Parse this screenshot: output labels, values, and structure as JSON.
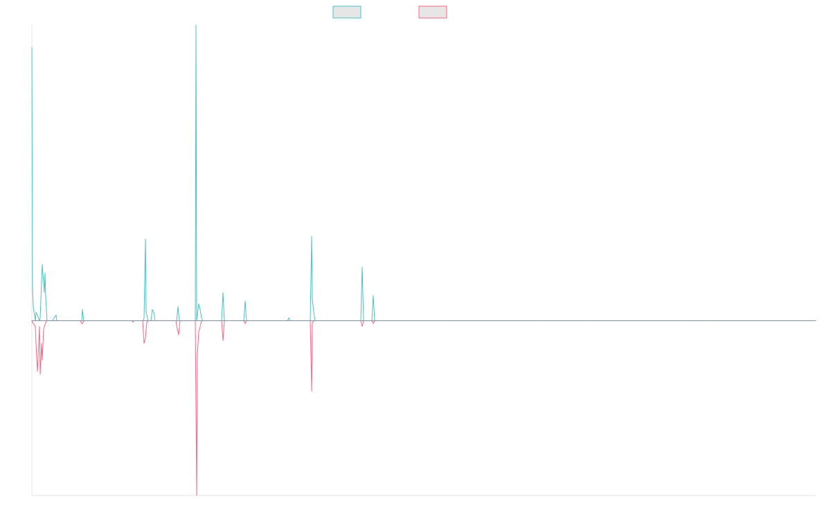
{
  "chart_data": {
    "type": "line",
    "legend": {
      "placement": "top-center",
      "entries": [
        {
          "series_index": 0,
          "label": ""
        },
        {
          "series_index": 1,
          "label": ""
        }
      ]
    },
    "x": [
      0,
      1,
      2,
      3,
      4,
      5,
      6,
      7,
      8,
      9,
      10,
      11,
      12,
      13,
      14,
      15,
      16,
      17,
      18,
      19,
      20,
      21,
      22,
      23,
      24,
      25,
      26,
      27,
      28,
      29,
      30,
      31,
      32,
      33,
      34,
      35,
      36,
      37,
      38,
      39,
      40,
      41,
      42,
      43,
      44,
      45,
      46,
      47,
      48,
      49,
      50,
      51,
      52,
      53,
      54,
      55,
      56,
      57,
      58,
      59,
      60,
      61,
      62,
      63,
      64,
      65,
      66,
      67,
      68,
      69,
      70,
      71,
      72,
      73,
      74,
      75,
      76,
      77,
      78,
      79,
      80,
      81,
      82,
      83,
      84,
      85,
      86,
      87,
      88,
      89,
      90,
      91,
      92,
      93,
      94,
      95,
      96,
      97,
      98,
      99,
      100,
      101,
      102,
      103,
      104,
      105,
      106,
      107,
      108,
      109,
      110,
      111,
      112,
      113,
      114,
      115,
      116,
      117,
      118,
      119,
      120,
      121,
      122,
      123,
      124,
      125,
      126,
      127,
      128,
      129,
      130,
      131,
      132,
      133,
      134,
      135,
      136,
      137,
      138,
      139,
      140,
      141,
      142,
      143,
      144,
      145,
      146,
      147,
      148,
      149,
      150,
      151,
      152,
      153,
      154,
      155,
      156,
      157,
      158,
      159,
      160,
      161,
      162,
      163,
      164,
      165,
      166,
      167,
      168,
      169,
      170,
      171,
      172,
      173,
      174,
      175,
      176,
      177,
      178,
      179,
      180,
      181,
      182,
      183,
      184,
      185,
      186,
      187,
      188,
      189,
      190,
      191,
      192,
      193,
      194,
      195,
      196,
      197,
      198,
      199,
      200,
      201,
      202,
      203,
      204,
      205,
      206,
      207,
      208,
      209,
      210,
      211,
      212,
      213,
      214,
      215,
      216,
      217,
      218,
      219,
      220,
      221,
      222,
      223,
      224,
      225,
      226,
      227,
      228,
      229,
      230,
      231,
      232,
      233,
      234,
      235,
      236,
      237,
      238,
      239,
      240,
      241,
      242,
      243,
      244,
      245,
      246,
      247,
      248,
      249,
      250,
      251,
      252,
      253,
      254,
      255,
      256,
      257,
      258,
      259,
      260,
      261,
      262,
      263,
      264,
      265,
      266,
      267,
      268,
      269,
      270,
      271,
      272,
      273,
      274,
      275,
      276,
      277,
      278,
      279,
      280,
      281,
      282,
      283,
      284,
      285,
      286,
      287,
      288,
      289,
      290,
      291,
      292,
      293,
      294,
      295,
      296,
      297,
      298,
      299,
      300,
      301,
      302,
      303,
      304,
      305,
      306,
      307,
      308,
      309,
      310,
      311,
      312,
      313,
      314,
      315,
      316,
      317,
      318,
      319,
      320,
      321,
      322,
      323,
      324,
      325,
      326,
      327,
      328,
      329,
      330,
      331,
      332,
      333,
      334,
      335,
      336,
      337,
      338,
      339,
      340,
      341,
      342,
      343,
      344,
      345,
      346,
      347,
      348,
      349,
      350,
      351,
      352,
      353,
      354,
      355,
      356,
      357,
      358,
      359,
      360,
      361,
      362,
      363,
      364,
      365,
      366,
      367,
      368,
      369,
      370,
      371,
      372,
      373,
      374,
      375,
      376,
      377,
      378,
      379,
      380,
      381,
      382,
      383,
      384,
      385,
      386,
      387,
      388,
      389,
      390,
      391,
      392,
      393,
      394,
      395,
      396,
      397,
      398,
      399,
      400,
      401,
      402,
      403,
      404,
      405,
      406,
      407,
      408,
      409,
      410,
      411,
      412,
      413,
      414,
      415,
      416,
      417,
      418,
      419,
      420,
      421,
      422,
      423,
      424,
      425,
      426,
      427,
      428,
      429,
      430,
      431,
      432,
      433,
      434,
      435,
      436,
      437,
      438,
      439,
      440,
      441,
      442,
      443,
      444,
      445,
      446,
      447,
      448,
      449,
      450,
      451,
      452,
      453,
      454,
      455,
      456,
      457,
      458,
      459,
      460,
      461,
      462,
      463,
      464,
      465,
      466,
      467,
      468,
      469,
      470,
      471,
      472,
      473,
      474,
      475,
      476,
      477,
      478,
      479,
      480,
      481,
      482,
      483,
      484,
      485,
      486,
      487,
      488,
      489,
      490,
      491,
      492,
      493,
      494,
      495,
      496,
      497,
      498,
      499,
      500,
      501,
      502,
      503,
      504,
      505,
      506,
      507,
      508,
      509,
      510,
      511,
      512,
      513,
      514,
      515,
      516,
      517,
      518,
      519,
      520,
      521,
      522,
      523,
      524,
      525,
      526,
      527,
      528,
      529,
      530,
      531,
      532,
      533,
      534,
      535,
      536,
      537,
      538,
      539,
      540,
      541,
      542,
      543,
      544,
      545,
      546,
      547,
      548,
      549,
      550,
      551,
      552,
      553,
      554,
      555,
      556,
      557,
      558,
      559,
      560,
      561,
      562,
      563,
      564,
      565,
      566,
      567,
      568,
      569,
      570,
      571,
      572,
      573,
      574,
      575,
      576,
      577,
      578,
      579,
      580,
      581,
      582,
      583,
      584,
      585,
      586,
      587,
      588,
      589,
      590,
      591,
      592,
      593,
      594,
      595,
      596,
      597,
      598,
      599,
      600,
      601,
      602,
      603,
      604,
      605,
      606,
      607,
      608,
      609,
      610,
      611,
      612,
      613,
      614,
      615,
      616,
      617,
      618,
      619,
      620,
      621,
      622,
      623,
      624,
      625,
      626,
      627,
      628,
      629,
      630,
      631,
      632,
      633,
      634,
      635,
      636,
      637,
      638,
      639,
      640,
      641,
      642,
      643,
      644,
      645,
      646,
      647,
      648,
      649,
      650,
      651,
      652,
      653,
      654,
      655,
      656,
      657,
      658,
      659,
      660,
      661,
      662,
      663,
      664,
      665,
      666,
      667,
      668,
      669,
      670,
      671,
      672,
      673,
      674,
      675,
      676,
      677,
      678,
      679,
      680,
      681,
      682,
      683,
      684,
      685,
      686,
      687,
      688,
      689,
      690,
      691,
      692,
      693,
      694,
      695,
      696,
      697,
      698,
      699,
      700,
      701,
      702,
      703,
      704,
      705,
      706,
      707,
      708,
      709,
      710,
      711,
      712,
      713,
      714,
      715,
      716,
      717,
      718,
      719,
      720,
      721,
      722,
      723,
      724,
      725,
      726,
      727,
      728,
      729,
      730,
      731,
      732,
      733,
      734,
      735,
      736,
      737,
      738,
      739,
      740,
      741,
      742,
      743,
      744,
      745,
      746,
      747,
      748,
      749,
      750,
      751,
      752,
      753,
      754,
      755,
      756,
      757,
      758,
      759,
      760,
      761,
      762,
      763,
      764,
      765,
      766,
      767,
      768,
      769,
      770,
      771,
      772,
      773,
      774,
      775,
      776,
      777,
      778,
      779,
      780,
      781,
      782,
      783,
      784,
      785,
      786,
      787,
      788,
      789,
      790,
      791,
      792,
      793,
      794,
      795,
      796,
      797,
      798,
      799,
      800,
      801,
      802,
      803,
      804,
      805,
      806,
      807,
      808,
      809,
      810,
      811,
      812,
      813,
      814,
      815,
      816,
      817,
      818,
      819,
      820,
      821,
      822,
      823,
      824,
      825,
      826,
      827,
      828,
      829,
      830,
      831,
      832,
      833,
      834,
      835,
      836,
      837,
      838,
      839,
      840,
      841,
      842,
      843,
      844,
      845,
      846,
      847,
      848,
      849,
      850,
      851,
      852,
      853,
      854,
      855,
      856,
      857,
      858,
      859,
      860,
      861,
      862,
      863,
      864,
      865,
      866,
      867,
      868,
      869,
      870,
      871,
      872,
      873,
      874,
      875,
      876,
      877,
      878,
      879,
      880,
      881,
      882,
      883,
      884,
      885,
      886,
      887,
      888,
      889,
      890,
      891,
      892,
      893,
      894,
      895,
      896,
      897,
      898,
      899,
      900,
      901,
      902,
      903,
      904,
      905,
      906,
      907,
      908,
      909,
      910,
      911,
      912,
      913,
      914,
      915,
      916,
      917,
      918,
      919,
      920,
      921,
      922,
      923,
      924,
      925,
      926,
      927,
      928,
      929,
      930,
      931,
      932,
      933,
      934,
      935,
      936,
      937,
      938,
      939,
      940,
      941,
      942,
      943,
      944,
      945,
      946,
      947,
      948,
      949,
      950,
      951,
      952,
      953,
      954,
      955,
      956,
      957,
      958,
      959,
      960,
      961,
      962,
      963,
      964,
      965,
      966,
      967,
      968,
      969,
      970,
      971,
      972,
      973,
      974,
      975,
      976,
      977,
      978,
      979,
      980,
      981,
      982,
      983,
      984,
      985,
      986,
      987,
      988,
      989,
      990,
      991,
      992,
      993,
      994,
      995,
      996,
      997,
      998,
      999,
      1000,
      1001,
      1002,
      1003,
      1004,
      1005,
      1006,
      1007,
      1008,
      1009,
      1010,
      1011,
      1012,
      1013,
      1014,
      1015,
      1016,
      1017,
      1018,
      1019,
      1020,
      1021,
      1022,
      1023,
      1024,
      1025,
      1026,
      1027,
      1028,
      1029,
      1030,
      1031,
      1032,
      1033,
      1034,
      1035,
      1036,
      1037,
      1038,
      1039,
      1040,
      1041,
      1042,
      1043,
      1044,
      1045,
      1046,
      1047,
      1048,
      1049,
      1050,
      1051,
      1052,
      1053,
      1054,
      1055,
      1056,
      1057,
      1058,
      1059,
      1060,
      1061,
      1062,
      1063,
      1064,
      1065,
      1066,
      1067,
      1068,
      1069,
      1070,
      1071,
      1072,
      1073,
      1074,
      1075,
      1076,
      1077,
      1078,
      1079,
      1080,
      1081,
      1082,
      1083,
      1084,
      1085,
      1086,
      1087,
      1088,
      1089,
      1090,
      1091,
      1092,
      1093,
      1094,
      1095,
      1096,
      1097,
      1098,
      1099,
      1100,
      1101,
      1102,
      1103,
      1104,
      1105,
      1106,
      1107,
      1108,
      1109,
      1110,
      1111,
      1112,
      1113,
      1114,
      1115,
      1116,
      1117,
      1118,
      1119,
      1120,
      1121,
      1122,
      1123,
      1124,
      1125,
      1126,
      1127,
      1128,
      1129,
      1130,
      1131,
      1132
    ],
    "series": [
      {
        "color": "#4bc0c0",
        "border": "#4bc0c0",
        "points": [
          [
            0,
            97
          ],
          [
            1,
            12
          ],
          [
            2,
            5
          ],
          [
            5,
            0
          ],
          [
            6,
            3
          ],
          [
            8,
            2
          ],
          [
            11,
            0
          ],
          [
            12,
            1
          ],
          [
            15,
            20
          ],
          [
            18,
            10
          ],
          [
            19,
            17
          ],
          [
            20,
            8
          ],
          [
            22,
            0
          ],
          [
            23,
            0
          ],
          [
            30,
            0
          ],
          [
            32,
            1
          ],
          [
            35,
            2
          ],
          [
            36,
            0
          ],
          [
            70,
            0
          ],
          [
            72,
            0
          ],
          [
            73,
            4
          ],
          [
            75,
            0
          ],
          [
            161,
            0
          ],
          [
            162,
            1
          ],
          [
            164,
            29
          ],
          [
            165,
            3
          ],
          [
            166,
            2
          ],
          [
            168,
            0
          ],
          [
            172,
            0
          ],
          [
            174,
            4
          ],
          [
            176,
            3
          ],
          [
            178,
            0
          ],
          [
            209,
            0
          ],
          [
            211,
            5
          ],
          [
            213,
            0
          ],
          [
            236,
            0
          ],
          [
            237,
            105
          ],
          [
            238,
            0
          ],
          [
            241,
            6
          ],
          [
            243,
            4
          ],
          [
            245,
            1
          ],
          [
            247,
            0
          ],
          [
            274,
            0
          ],
          [
            276,
            10
          ],
          [
            278,
            0
          ],
          [
            306,
            0
          ],
          [
            308,
            7
          ],
          [
            310,
            0
          ],
          [
            369,
            0
          ],
          [
            371,
            1
          ],
          [
            373,
            0
          ],
          [
            402,
            0
          ],
          [
            404,
            30
          ],
          [
            405,
            8
          ],
          [
            407,
            3
          ],
          [
            409,
            0
          ],
          [
            475,
            0
          ],
          [
            477,
            19
          ],
          [
            479,
            0
          ],
          [
            491,
            0
          ],
          [
            493,
            9
          ],
          [
            495,
            0
          ],
          [
            1132,
            0
          ]
        ]
      },
      {
        "color": "#ff6384",
        "border": "#ff6384",
        "points": [
          [
            0,
            0
          ],
          [
            2,
            -1
          ],
          [
            5,
            -2
          ],
          [
            6,
            -8
          ],
          [
            8,
            -18
          ],
          [
            10,
            -8
          ],
          [
            11,
            -2
          ],
          [
            12,
            -19
          ],
          [
            14,
            -8
          ],
          [
            15,
            -14
          ],
          [
            17,
            -3
          ],
          [
            20,
            -0.5
          ],
          [
            22,
            0
          ],
          [
            70,
            0
          ],
          [
            72,
            -1
          ],
          [
            73,
            -1
          ],
          [
            75,
            0
          ],
          [
            145,
            0
          ],
          [
            146,
            -0.5
          ],
          [
            147,
            0
          ],
          [
            160,
            0
          ],
          [
            162,
            -8
          ],
          [
            164,
            -6
          ],
          [
            166,
            -0.5
          ],
          [
            168,
            0
          ],
          [
            208,
            0
          ],
          [
            210,
            -3
          ],
          [
            212,
            -5
          ],
          [
            214,
            0
          ],
          [
            236,
            0
          ],
          [
            238,
            -62
          ],
          [
            239,
            -12
          ],
          [
            241,
            -4
          ],
          [
            243,
            -2
          ],
          [
            245,
            0
          ],
          [
            274,
            0
          ],
          [
            276,
            -7
          ],
          [
            278,
            0
          ],
          [
            306,
            0
          ],
          [
            308,
            -1
          ],
          [
            310,
            0
          ],
          [
            402,
            0
          ],
          [
            404,
            -25
          ],
          [
            405,
            -1
          ],
          [
            407,
            0
          ],
          [
            475,
            0
          ],
          [
            477,
            -2
          ],
          [
            479,
            0
          ],
          [
            491,
            0
          ],
          [
            493,
            -1
          ],
          [
            495,
            0
          ],
          [
            1132,
            0
          ]
        ]
      }
    ],
    "xlim": [
      0,
      1132
    ],
    "ylim": [
      -62,
      105
    ],
    "grid": false
  }
}
